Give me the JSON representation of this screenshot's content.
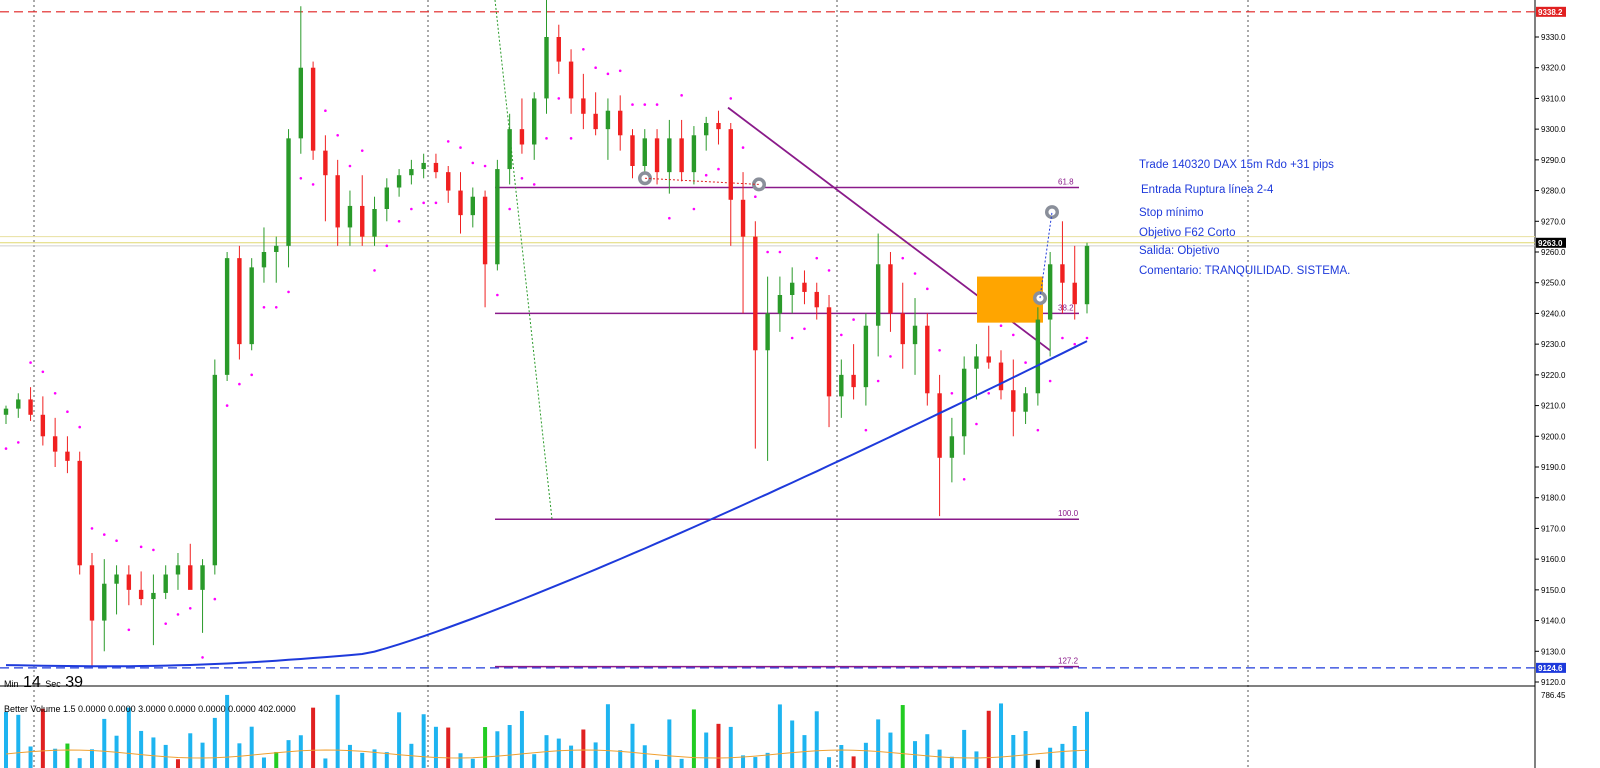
{
  "chart_data": {
    "type": "candlestick",
    "instrument": "DAX",
    "timeframe": "15m",
    "y_axis": {
      "ylim": [
        9117,
        9343
      ],
      "ticks": [
        "9330.0",
        "9320.0",
        "9310.0",
        "9300.0",
        "9290.0",
        "9280.0",
        "9270.0",
        "9260.0",
        "9250.0",
        "9240.0",
        "9230.0",
        "9220.0",
        "9210.0",
        "9200.0",
        "9190.0",
        "9180.0",
        "9170.0",
        "9160.0",
        "9150.0",
        "9140.0",
        "9130.0",
        "9120.0"
      ],
      "tick_values": [
        9330,
        9320,
        9310,
        9300,
        9290,
        9280,
        9270,
        9260,
        9250,
        9240,
        9230,
        9220,
        9210,
        9200,
        9190,
        9180,
        9170,
        9160,
        9150,
        9140,
        9130,
        9120
      ]
    },
    "price_tags": [
      {
        "value": 9338.2,
        "label": "9338.2",
        "color": "#e02020"
      },
      {
        "value": 9263.0,
        "label": "9263.0",
        "color": "#000000"
      },
      {
        "value": 9124.6,
        "label": "9124.6",
        "color": "#1e3adb"
      }
    ],
    "horizontal_lines": [
      {
        "value": 9338.2,
        "style": "dashed",
        "color": "#e02020"
      },
      {
        "value": 9263.0,
        "style": "solid",
        "color": "#e0d870"
      },
      {
        "value": 9124.6,
        "style": "dashed",
        "color": "#1e3adb"
      }
    ],
    "fibonacci": {
      "color": "#8a1a8a",
      "levels": [
        {
          "label": "61.8",
          "value": 9281
        },
        {
          "label": "38.2",
          "value": 9240
        },
        {
          "label": "100.0",
          "value": 9173
        },
        {
          "label": "127.2",
          "value": 9125
        }
      ]
    },
    "candles": [
      {
        "o": 9207,
        "h": 9210,
        "l": 9204,
        "c": 9209
      },
      {
        "o": 9209,
        "h": 9214,
        "l": 9206,
        "c": 9212
      },
      {
        "o": 9212,
        "h": 9216,
        "l": 9205,
        "c": 9207
      },
      {
        "o": 9207,
        "h": 9213,
        "l": 9197,
        "c": 9200
      },
      {
        "o": 9200,
        "h": 9206,
        "l": 9190,
        "c": 9195
      },
      {
        "o": 9195,
        "h": 9200,
        "l": 9188,
        "c": 9192
      },
      {
        "o": 9192,
        "h": 9195,
        "l": 9155,
        "c": 9158
      },
      {
        "o": 9158,
        "h": 9162,
        "l": 9125,
        "c": 9140
      },
      {
        "o": 9140,
        "h": 9160,
        "l": 9130,
        "c": 9152
      },
      {
        "o": 9152,
        "h": 9158,
        "l": 9142,
        "c": 9155
      },
      {
        "o": 9155,
        "h": 9158,
        "l": 9145,
        "c": 9150
      },
      {
        "o": 9150,
        "h": 9156,
        "l": 9145,
        "c": 9147
      },
      {
        "o": 9147,
        "h": 9155,
        "l": 9132,
        "c": 9149
      },
      {
        "o": 9149,
        "h": 9158,
        "l": 9147,
        "c": 9155
      },
      {
        "o": 9155,
        "h": 9162,
        "l": 9150,
        "c": 9158
      },
      {
        "o": 9158,
        "h": 9165,
        "l": 9152,
        "c": 9150
      },
      {
        "o": 9150,
        "h": 9160,
        "l": 9136,
        "c": 9158
      },
      {
        "o": 9158,
        "h": 9225,
        "l": 9155,
        "c": 9220
      },
      {
        "o": 9220,
        "h": 9260,
        "l": 9218,
        "c": 9258
      },
      {
        "o": 9258,
        "h": 9262,
        "l": 9225,
        "c": 9230
      },
      {
        "o": 9230,
        "h": 9258,
        "l": 9228,
        "c": 9255
      },
      {
        "o": 9255,
        "h": 9268,
        "l": 9250,
        "c": 9260
      },
      {
        "o": 9260,
        "h": 9265,
        "l": 9250,
        "c": 9262
      },
      {
        "o": 9262,
        "h": 9300,
        "l": 9255,
        "c": 9297
      },
      {
        "o": 9297,
        "h": 9340,
        "l": 9292,
        "c": 9320
      },
      {
        "o": 9320,
        "h": 9322,
        "l": 9290,
        "c": 9293
      },
      {
        "o": 9293,
        "h": 9298,
        "l": 9270,
        "c": 9285
      },
      {
        "o": 9285,
        "h": 9290,
        "l": 9262,
        "c": 9268
      },
      {
        "o": 9268,
        "h": 9280,
        "l": 9262,
        "c": 9275
      },
      {
        "o": 9275,
        "h": 9285,
        "l": 9262,
        "c": 9265
      },
      {
        "o": 9265,
        "h": 9278,
        "l": 9262,
        "c": 9274
      },
      {
        "o": 9274,
        "h": 9284,
        "l": 9270,
        "c": 9281
      },
      {
        "o": 9281,
        "h": 9287,
        "l": 9278,
        "c": 9285
      },
      {
        "o": 9285,
        "h": 9290,
        "l": 9282,
        "c": 9287
      },
      {
        "o": 9287,
        "h": 9292,
        "l": 9284,
        "c": 9289
      },
      {
        "o": 9289,
        "h": 9292,
        "l": 9284,
        "c": 9286
      },
      {
        "o": 9286,
        "h": 9288,
        "l": 9276,
        "c": 9280
      },
      {
        "o": 9280,
        "h": 9286,
        "l": 9266,
        "c": 9272
      },
      {
        "o": 9272,
        "h": 9281,
        "l": 9268,
        "c": 9278
      },
      {
        "o": 9278,
        "h": 9280,
        "l": 9242,
        "c": 9256
      },
      {
        "o": 9256,
        "h": 9290,
        "l": 9254,
        "c": 9287
      },
      {
        "o": 9287,
        "h": 9305,
        "l": 9282,
        "c": 9300
      },
      {
        "o": 9300,
        "h": 9310,
        "l": 9292,
        "c": 9295
      },
      {
        "o": 9295,
        "h": 9312,
        "l": 9290,
        "c": 9310
      },
      {
        "o": 9310,
        "h": 9343,
        "l": 9305,
        "c": 9330
      },
      {
        "o": 9330,
        "h": 9334,
        "l": 9318,
        "c": 9322
      },
      {
        "o": 9322,
        "h": 9326,
        "l": 9305,
        "c": 9310
      },
      {
        "o": 9310,
        "h": 9318,
        "l": 9300,
        "c": 9305
      },
      {
        "o": 9305,
        "h": 9312,
        "l": 9298,
        "c": 9300
      },
      {
        "o": 9300,
        "h": 9310,
        "l": 9290,
        "c": 9306
      },
      {
        "o": 9306,
        "h": 9311,
        "l": 9293,
        "c": 9298
      },
      {
        "o": 9298,
        "h": 9300,
        "l": 9284,
        "c": 9288
      },
      {
        "o": 9288,
        "h": 9300,
        "l": 9285,
        "c": 9297
      },
      {
        "o": 9297,
        "h": 9300,
        "l": 9282,
        "c": 9286
      },
      {
        "o": 9286,
        "h": 9303,
        "l": 9279,
        "c": 9297
      },
      {
        "o": 9297,
        "h": 9303,
        "l": 9283,
        "c": 9286
      },
      {
        "o": 9286,
        "h": 9301,
        "l": 9282,
        "c": 9298
      },
      {
        "o": 9298,
        "h": 9304,
        "l": 9293,
        "c": 9302
      },
      {
        "o": 9302,
        "h": 9306,
        "l": 9295,
        "c": 9300
      },
      {
        "o": 9300,
        "h": 9302,
        "l": 9262,
        "c": 9277
      },
      {
        "o": 9277,
        "h": 9286,
        "l": 9240,
        "c": 9265
      },
      {
        "o": 9265,
        "h": 9270,
        "l": 9196,
        "c": 9228
      },
      {
        "o": 9228,
        "h": 9252,
        "l": 9192,
        "c": 9240
      },
      {
        "o": 9240,
        "h": 9252,
        "l": 9234,
        "c": 9246
      },
      {
        "o": 9246,
        "h": 9255,
        "l": 9240,
        "c": 9250
      },
      {
        "o": 9250,
        "h": 9254,
        "l": 9243,
        "c": 9247
      },
      {
        "o": 9247,
        "h": 9250,
        "l": 9238,
        "c": 9242
      },
      {
        "o": 9242,
        "h": 9246,
        "l": 9203,
        "c": 9213
      },
      {
        "o": 9213,
        "h": 9225,
        "l": 9206,
        "c": 9220
      },
      {
        "o": 9220,
        "h": 9230,
        "l": 9212,
        "c": 9216
      },
      {
        "o": 9216,
        "h": 9240,
        "l": 9210,
        "c": 9236
      },
      {
        "o": 9236,
        "h": 9266,
        "l": 9226,
        "c": 9256
      },
      {
        "o": 9256,
        "h": 9260,
        "l": 9234,
        "c": 9240
      },
      {
        "o": 9240,
        "h": 9250,
        "l": 9222,
        "c": 9230
      },
      {
        "o": 9230,
        "h": 9245,
        "l": 9220,
        "c": 9236
      },
      {
        "o": 9236,
        "h": 9240,
        "l": 9210,
        "c": 9214
      },
      {
        "o": 9214,
        "h": 9220,
        "l": 9174,
        "c": 9193
      },
      {
        "o": 9193,
        "h": 9206,
        "l": 9185,
        "c": 9200
      },
      {
        "o": 9200,
        "h": 9226,
        "l": 9194,
        "c": 9222
      },
      {
        "o": 9222,
        "h": 9230,
        "l": 9212,
        "c": 9226
      },
      {
        "o": 9226,
        "h": 9236,
        "l": 9222,
        "c": 9224
      },
      {
        "o": 9224,
        "h": 9228,
        "l": 9212,
        "c": 9215
      },
      {
        "o": 9215,
        "h": 9225,
        "l": 9200,
        "c": 9208
      },
      {
        "o": 9208,
        "h": 9216,
        "l": 9204,
        "c": 9214
      },
      {
        "o": 9214,
        "h": 9242,
        "l": 9210,
        "c": 9238
      },
      {
        "o": 9238,
        "h": 9260,
        "l": 9226,
        "c": 9256
      },
      {
        "o": 9256,
        "h": 9270,
        "l": 9240,
        "c": 9250
      },
      {
        "o": 9250,
        "h": 9262,
        "l": 9238,
        "c": 9243
      },
      {
        "o": 9243,
        "h": 9263,
        "l": 9240,
        "c": 9262
      }
    ],
    "parabolic_sar_color": "#ff00ff",
    "moving_average_color": "#1e3adb",
    "volume_panel": {
      "title": "Better Volume 1.5 0.0000 0.0000 3.0000 0.0000 0.0000 0.0000 402.0000",
      "max_label": "786.45",
      "bar_colors": [
        "#1eb4f0",
        "#e02020",
        "#22cc22",
        "#111111"
      ],
      "ma_color": "#f0a030"
    }
  },
  "trade_annotations": {
    "line1": "Trade 140320 DAX 15m Rdo +31 pips",
    "line2": "Entrada Ruptura línea 2-4",
    "line3": "Stop mínimo",
    "line4": "Objetivo F62 Corto",
    "line5": "Salida: Objetivo",
    "line6": "Comentario: TRANQUILIDAD. SISTEMA."
  },
  "timer": {
    "min_label": "Min",
    "min_value": "14",
    "sec_label": "Sec",
    "sec_value": "39"
  },
  "colors": {
    "bull": "#2a9a2a",
    "bear": "#f02020",
    "entry_box": "#ffa500",
    "trendline": "#8a1a8a"
  }
}
